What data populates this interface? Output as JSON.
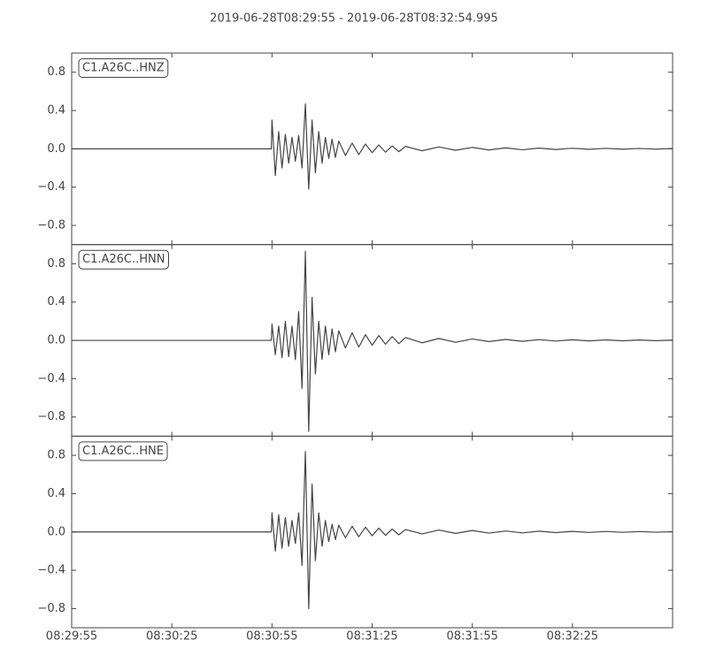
{
  "chart_data": [
    {
      "type": "line",
      "title": "2019-06-28T08:29:55  -  2019-06-28T08:32:54.995",
      "x": [
        0,
        59.8,
        60,
        61,
        62,
        63,
        64,
        65,
        66,
        67,
        68,
        69,
        70,
        71,
        72,
        73,
        74,
        75,
        76,
        77,
        78,
        79,
        80,
        82,
        84,
        86,
        88,
        90,
        92,
        94,
        96,
        98,
        100,
        105,
        110,
        115,
        120,
        125,
        130,
        135,
        140,
        145,
        150,
        155,
        160,
        165,
        170,
        175,
        180
      ],
      "series": [
        {
          "name": "C1.A26C..HNZ",
          "color": "#444444",
          "values": [
            0,
            0,
            0.3,
            -0.28,
            0.18,
            -0.2,
            0.15,
            -0.15,
            0.12,
            -0.13,
            0.14,
            -0.2,
            0.47,
            -0.42,
            0.3,
            -0.25,
            0.18,
            -0.15,
            0.12,
            -0.1,
            0.1,
            -0.09,
            0.08,
            -0.07,
            0.06,
            -0.06,
            0.05,
            -0.04,
            0.04,
            -0.035,
            0.03,
            -0.03,
            0.025,
            -0.02,
            0.02,
            -0.015,
            0.015,
            -0.012,
            0.01,
            -0.01,
            0.008,
            -0.007,
            0.006,
            -0.005,
            0.005,
            -0.004,
            0.004,
            -0.003,
            0.003
          ]
        }
      ],
      "xlim": [
        0,
        180
      ],
      "ylim": [
        -1,
        1
      ],
      "yticks": [
        {
          "value": -0.8,
          "label": "−0.8"
        },
        {
          "value": -0.4,
          "label": "−0.4"
        },
        {
          "value": 0,
          "label": "0.0"
        },
        0.4,
        0.8
      ]
    },
    {
      "type": "line",
      "x": [
        0,
        59.8,
        60,
        61,
        62,
        63,
        64,
        65,
        66,
        67,
        68,
        69,
        70,
        71,
        72,
        73,
        74,
        75,
        76,
        77,
        78,
        79,
        80,
        82,
        84,
        86,
        88,
        90,
        92,
        94,
        96,
        98,
        100,
        105,
        110,
        115,
        120,
        125,
        130,
        135,
        140,
        145,
        150,
        155,
        160,
        165,
        170,
        175,
        180
      ],
      "series": [
        {
          "name": "C1.A26C..HNN",
          "color": "#444444",
          "values": [
            0,
            0,
            0.17,
            -0.15,
            0.15,
            -0.18,
            0.2,
            -0.17,
            0.15,
            -0.2,
            0.3,
            -0.5,
            0.93,
            -0.95,
            0.45,
            -0.35,
            0.2,
            -0.2,
            0.15,
            -0.15,
            0.12,
            -0.12,
            0.1,
            -0.08,
            0.08,
            -0.07,
            0.06,
            -0.05,
            0.05,
            -0.04,
            0.04,
            -0.035,
            0.03,
            -0.025,
            0.02,
            -0.02,
            0.015,
            -0.012,
            0.01,
            -0.01,
            0.008,
            -0.007,
            0.006,
            -0.005,
            0.005,
            -0.004,
            0.004,
            -0.003,
            0.003
          ]
        }
      ],
      "xlim": [
        0,
        180
      ],
      "ylim": [
        -1,
        1
      ],
      "yticks": [
        {
          "value": -0.8,
          "label": "−0.8"
        },
        {
          "value": -0.4,
          "label": "−0.4"
        },
        {
          "value": 0,
          "label": "0.0"
        },
        0.4,
        0.8
      ]
    },
    {
      "type": "line",
      "x": [
        0,
        59.8,
        60,
        61,
        62,
        63,
        64,
        65,
        66,
        67,
        68,
        69,
        70,
        71,
        72,
        73,
        74,
        75,
        76,
        77,
        78,
        79,
        80,
        82,
        84,
        86,
        88,
        90,
        92,
        94,
        96,
        98,
        100,
        105,
        110,
        115,
        120,
        125,
        130,
        135,
        140,
        145,
        150,
        155,
        160,
        165,
        170,
        175,
        180
      ],
      "series": [
        {
          "name": "C1.A26C..HNE",
          "color": "#444444",
          "values": [
            0,
            0,
            0.2,
            -0.2,
            0.18,
            -0.17,
            0.15,
            -0.15,
            0.12,
            -0.12,
            0.2,
            -0.35,
            0.84,
            -0.8,
            0.5,
            -0.3,
            0.2,
            -0.15,
            0.12,
            -0.1,
            0.08,
            -0.08,
            0.07,
            -0.06,
            0.06,
            -0.05,
            0.05,
            -0.04,
            0.04,
            -0.035,
            0.03,
            -0.03,
            0.025,
            -0.02,
            0.02,
            -0.015,
            0.015,
            -0.012,
            0.01,
            -0.01,
            0.008,
            -0.007,
            0.006,
            -0.005,
            0.005,
            -0.004,
            0.004,
            -0.003,
            0.003
          ]
        }
      ],
      "xlim": [
        0,
        180
      ],
      "ylim": [
        -1,
        1
      ],
      "yticks": [
        {
          "value": -0.8,
          "label": "−0.8"
        },
        {
          "value": -0.4,
          "label": "−0.4"
        },
        {
          "value": 0,
          "label": "0.0"
        },
        0.4,
        0.8
      ],
      "xticks": [
        {
          "value": 0,
          "label": "08:29:55"
        },
        {
          "value": 30,
          "label": "08:30:25"
        },
        {
          "value": 60,
          "label": "08:30:55"
        },
        {
          "value": 90,
          "label": "08:31:25"
        },
        {
          "value": 120,
          "label": "08:31:55"
        },
        {
          "value": 150,
          "label": "08:32:25"
        }
      ]
    }
  ]
}
